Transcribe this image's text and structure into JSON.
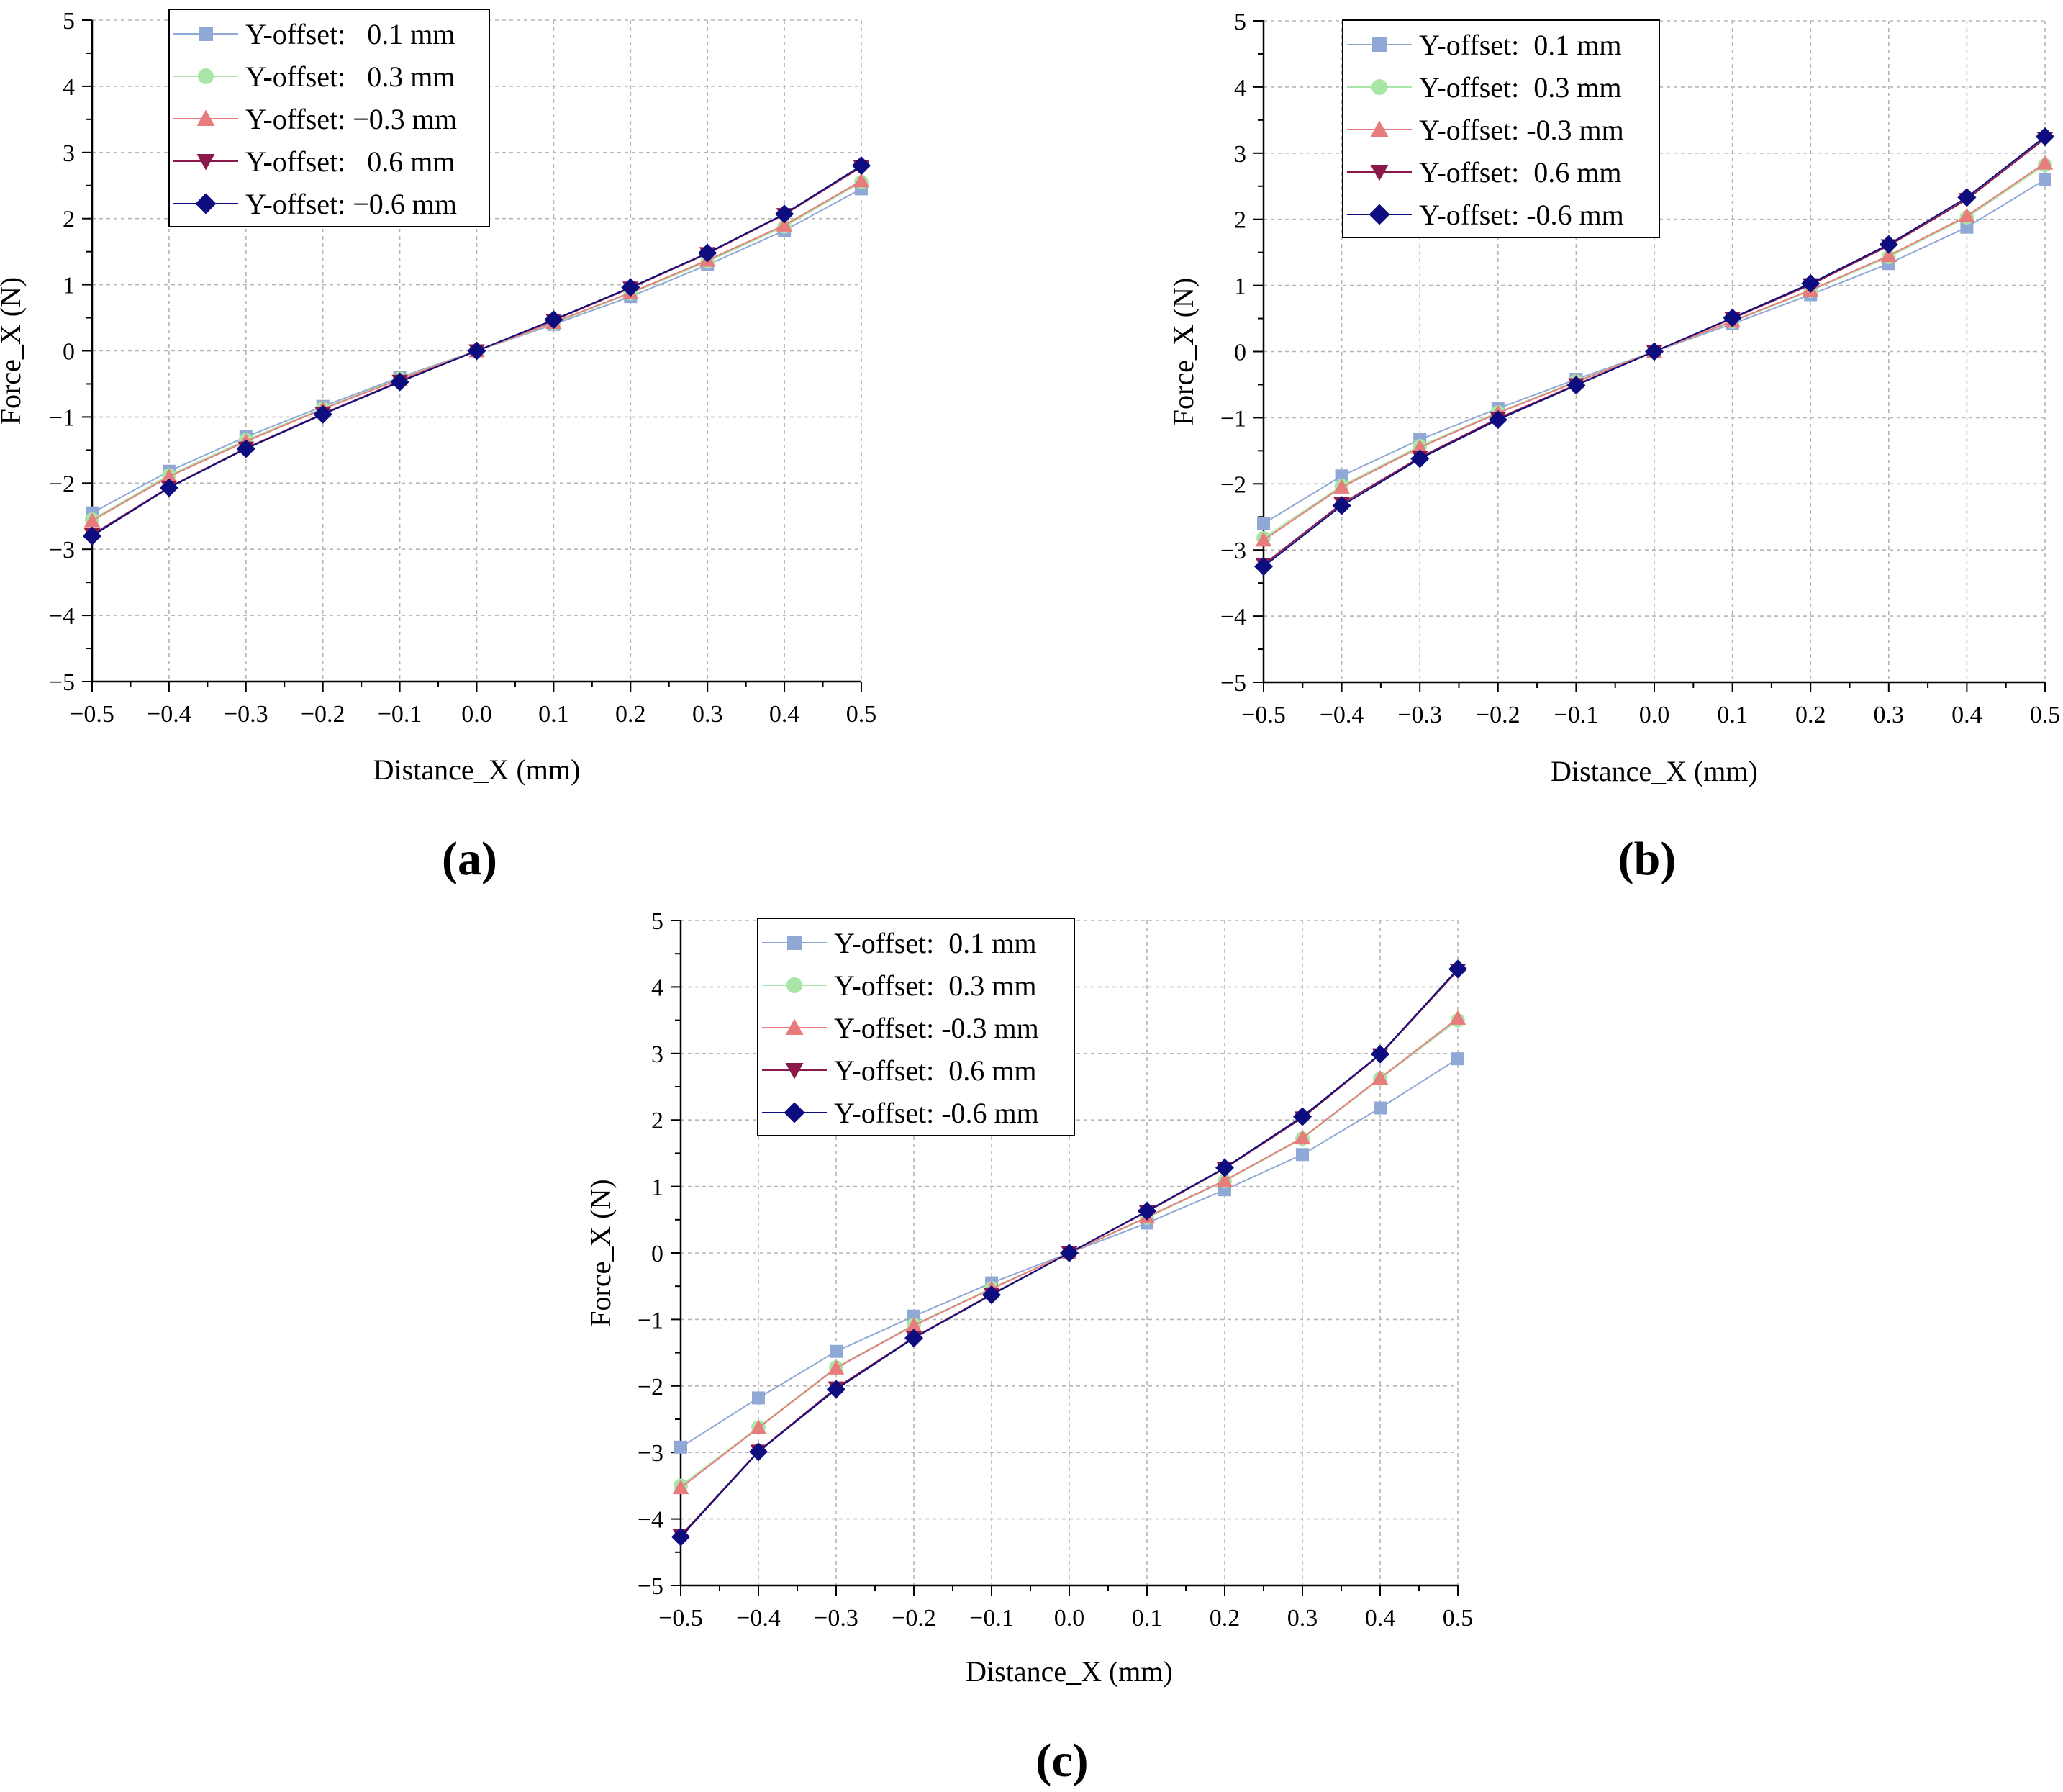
{
  "colors": {
    "s1": "#8fa8d6",
    "s2": "#a8e6a8",
    "s3": "#e87c7c",
    "s4": "#8b1a4a",
    "s5": "#0d0d80",
    "grid": "#b5b5b5",
    "axis": "#000000"
  },
  "markers": [
    "square",
    "circle",
    "triangle-up",
    "triangle-down",
    "diamond"
  ],
  "chart_data": [
    {
      "type": "line",
      "panel_label": "(a)",
      "xlabel": "Distance_X (mm)",
      "ylabel": "Force_X (N)",
      "xlim": [
        -0.5,
        0.5
      ],
      "ylim": [
        -5,
        5
      ],
      "grid": true,
      "legend_position": "top-left",
      "x": [
        -0.5,
        -0.4,
        -0.3,
        -0.2,
        -0.1,
        0.0,
        0.1,
        0.2,
        0.3,
        0.4,
        0.5
      ],
      "x_tick_labels": [
        "−0.5",
        "−0.4",
        "−0.3",
        "−0.2",
        "−0.1",
        "0.0",
        "0.1",
        "0.2",
        "0.3",
        "0.4",
        "0.5"
      ],
      "y_ticks": [
        -5,
        -4,
        -3,
        -2,
        -1,
        0,
        1,
        2,
        3,
        4,
        5
      ],
      "y_tick_labels": [
        "−5",
        "−4",
        "−3",
        "−2",
        "−1",
        "0",
        "1",
        "2",
        "3",
        "4",
        "5"
      ],
      "series": [
        {
          "name": "Y-offset:   0.1 mm",
          "values": [
            -2.45,
            -1.82,
            -1.3,
            -0.84,
            -0.4,
            0.0,
            0.4,
            0.82,
            1.3,
            1.82,
            2.45
          ]
        },
        {
          "name": "Y-offset:   0.3 mm",
          "values": [
            -2.55,
            -1.88,
            -1.35,
            -0.87,
            -0.42,
            0.0,
            0.42,
            0.87,
            1.35,
            1.88,
            2.55
          ]
        },
        {
          "name": "Y-offset: −0.3 mm",
          "values": [
            -2.57,
            -1.9,
            -1.37,
            -0.88,
            -0.43,
            0.0,
            0.43,
            0.88,
            1.37,
            1.9,
            2.57
          ]
        },
        {
          "name": "Y-offset:   0.6 mm",
          "values": [
            -2.78,
            -2.06,
            -1.47,
            -0.95,
            -0.46,
            0.0,
            0.46,
            0.95,
            1.47,
            2.06,
            2.78
          ]
        },
        {
          "name": "Y-offset: −0.6 mm",
          "values": [
            -2.8,
            -2.07,
            -1.48,
            -0.96,
            -0.47,
            0.0,
            0.47,
            0.96,
            1.48,
            2.07,
            2.8
          ]
        }
      ]
    },
    {
      "type": "line",
      "panel_label": "(b)",
      "xlabel": "Distance_X (mm)",
      "ylabel": "Force_X (N)",
      "xlim": [
        -0.5,
        0.5
      ],
      "ylim": [
        -5,
        5
      ],
      "grid": true,
      "legend_position": "top-left",
      "x": [
        -0.5,
        -0.4,
        -0.3,
        -0.2,
        -0.1,
        0.0,
        0.1,
        0.2,
        0.3,
        0.4,
        0.5
      ],
      "x_tick_labels": [
        "−0.5",
        "−0.4",
        "−0.3",
        "−0.2",
        "−0.1",
        "0.0",
        "0.1",
        "0.2",
        "0.3",
        "0.4",
        "0.5"
      ],
      "y_ticks": [
        -5,
        -4,
        -3,
        -2,
        -1,
        0,
        1,
        2,
        3,
        4,
        5
      ],
      "y_tick_labels": [
        "−5",
        "−4",
        "−3",
        "−2",
        "−1",
        "0",
        "1",
        "2",
        "3",
        "4",
        "5"
      ],
      "series": [
        {
          "name": "Y-offset:  0.1 mm",
          "values": [
            -2.6,
            -1.88,
            -1.33,
            -0.86,
            -0.42,
            0.0,
            0.42,
            0.86,
            1.33,
            1.88,
            2.6
          ]
        },
        {
          "name": "Y-offset:  0.3 mm",
          "values": [
            -2.82,
            -2.03,
            -1.43,
            -0.92,
            -0.45,
            0.0,
            0.45,
            0.92,
            1.43,
            2.03,
            2.82
          ]
        },
        {
          "name": "Y-offset: -0.3 mm",
          "values": [
            -2.85,
            -2.05,
            -1.45,
            -0.93,
            -0.46,
            0.0,
            0.46,
            0.93,
            1.45,
            2.05,
            2.85
          ]
        },
        {
          "name": "Y-offset:  0.6 mm",
          "values": [
            -3.22,
            -2.3,
            -1.6,
            -1.01,
            -0.5,
            0.0,
            0.5,
            1.01,
            1.6,
            2.3,
            3.22
          ]
        },
        {
          "name": "Y-offset: -0.6 mm",
          "values": [
            -3.25,
            -2.33,
            -1.62,
            -1.03,
            -0.51,
            0.0,
            0.51,
            1.03,
            1.62,
            2.33,
            3.25
          ]
        }
      ]
    },
    {
      "type": "line",
      "panel_label": "(c)",
      "xlabel": "Distance_X (mm)",
      "ylabel": "Force_X (N)",
      "xlim": [
        -0.5,
        0.5
      ],
      "ylim": [
        -5,
        5
      ],
      "grid": true,
      "legend_position": "top-left",
      "x": [
        -0.5,
        -0.4,
        -0.3,
        -0.2,
        -0.1,
        0.0,
        0.1,
        0.2,
        0.3,
        0.4,
        0.5
      ],
      "x_tick_labels": [
        "−0.5",
        "−0.4",
        "−0.3",
        "−0.2",
        "−0.1",
        "0.0",
        "0.1",
        "0.2",
        "0.3",
        "0.4",
        "0.5"
      ],
      "y_ticks": [
        -5,
        -4,
        -3,
        -2,
        -1,
        0,
        1,
        2,
        3,
        4,
        5
      ],
      "y_tick_labels": [
        "−5",
        "−4",
        "−3",
        "−2",
        "−1",
        "0",
        "1",
        "2",
        "3",
        "4",
        "5"
      ],
      "series": [
        {
          "name": "Y-offset:  0.1 mm",
          "values": [
            -2.92,
            -2.18,
            -1.48,
            -0.95,
            -0.45,
            0.0,
            0.45,
            0.95,
            1.48,
            2.18,
            2.92
          ]
        },
        {
          "name": "Y-offset:  0.3 mm",
          "values": [
            -3.5,
            -2.62,
            -1.72,
            -1.08,
            -0.53,
            0.0,
            0.53,
            1.08,
            1.72,
            2.62,
            3.5
          ]
        },
        {
          "name": "Y-offset: -0.3 mm",
          "values": [
            -3.53,
            -2.63,
            -1.73,
            -1.09,
            -0.54,
            0.0,
            0.54,
            1.09,
            1.73,
            2.63,
            3.53
          ]
        },
        {
          "name": "Y-offset:  0.6 mm",
          "values": [
            -4.25,
            -2.98,
            -2.03,
            -1.27,
            -0.62,
            0.0,
            0.62,
            1.27,
            2.03,
            2.98,
            4.25
          ]
        },
        {
          "name": "Y-offset: -0.6 mm",
          "values": [
            -4.27,
            -2.99,
            -2.05,
            -1.28,
            -0.63,
            0.0,
            0.63,
            1.28,
            2.05,
            2.99,
            4.27
          ]
        }
      ]
    }
  ]
}
